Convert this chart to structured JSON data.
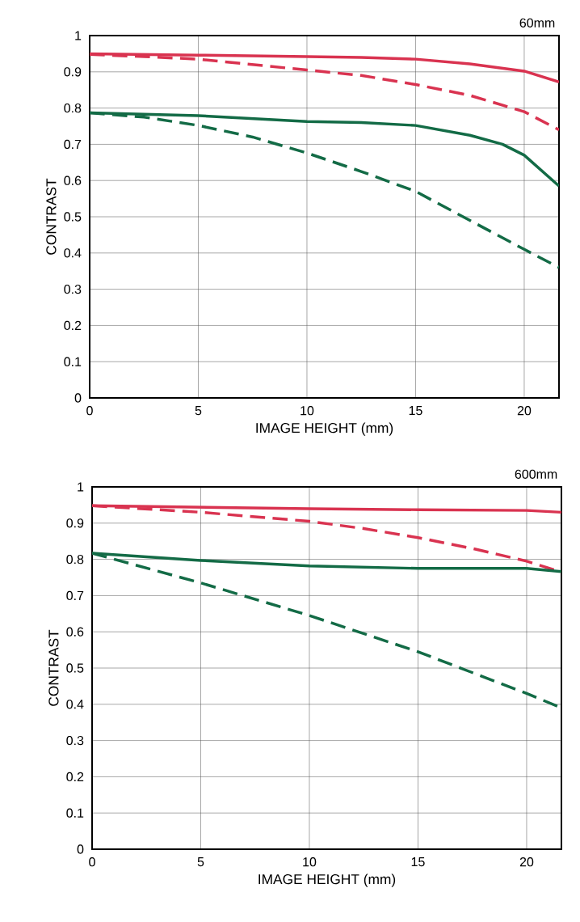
{
  "chart_data": [
    {
      "type": "line",
      "title": "60mm",
      "xlabel": "IMAGE HEIGHT (mm)",
      "ylabel": "CONTRAST",
      "xlim": [
        0,
        21.6
      ],
      "ylim": [
        0,
        1
      ],
      "xticks": [
        0,
        5,
        10,
        15,
        20
      ],
      "yticks": [
        0,
        0.1,
        0.2,
        0.3,
        0.4,
        0.5,
        0.6,
        0.7,
        0.8,
        0.9,
        1
      ],
      "grid": true,
      "marker": "none",
      "series": [
        {
          "color": "#d93350",
          "line_style": "solid",
          "x": [
            0,
            5,
            10,
            12.5,
            15,
            17.5,
            20,
            21.6
          ],
          "values": [
            0.95,
            0.946,
            0.942,
            0.94,
            0.935,
            0.922,
            0.902,
            0.872
          ]
        },
        {
          "color": "#d93350",
          "line_style": "dashed",
          "x": [
            0,
            2.5,
            5,
            10,
            12.5,
            15,
            17.5,
            20,
            21.6
          ],
          "values": [
            0.948,
            0.942,
            0.935,
            0.905,
            0.89,
            0.865,
            0.835,
            0.79,
            0.74
          ]
        },
        {
          "color": "#136b46",
          "line_style": "solid",
          "x": [
            0,
            5,
            10,
            12.5,
            15,
            17.5,
            19,
            20,
            21.6
          ],
          "values": [
            0.787,
            0.779,
            0.763,
            0.76,
            0.752,
            0.725,
            0.7,
            0.67,
            0.585
          ]
        },
        {
          "color": "#136b46",
          "line_style": "dashed",
          "x": [
            0,
            2.5,
            5,
            7.5,
            10,
            12.5,
            15,
            17.5,
            20,
            21.6
          ],
          "values": [
            0.787,
            0.775,
            0.752,
            0.72,
            0.676,
            0.625,
            0.57,
            0.49,
            0.41,
            0.36
          ]
        }
      ]
    },
    {
      "type": "line",
      "title": "600mm",
      "xlabel": "IMAGE HEIGHT (mm)",
      "ylabel": "CONTRAST",
      "xlim": [
        0,
        21.6
      ],
      "ylim": [
        0,
        1
      ],
      "xticks": [
        0,
        5,
        10,
        15,
        20
      ],
      "yticks": [
        0,
        0.1,
        0.2,
        0.3,
        0.4,
        0.5,
        0.6,
        0.7,
        0.8,
        0.9,
        1
      ],
      "grid": true,
      "marker": "none",
      "series": [
        {
          "color": "#d93350",
          "line_style": "solid",
          "x": [
            0,
            10,
            15,
            20,
            21.6
          ],
          "values": [
            0.948,
            0.94,
            0.937,
            0.935,
            0.93
          ]
        },
        {
          "color": "#d93350",
          "line_style": "dashed",
          "x": [
            0,
            5,
            10,
            12.5,
            15,
            17.5,
            20,
            21.6
          ],
          "values": [
            0.948,
            0.93,
            0.905,
            0.885,
            0.86,
            0.83,
            0.795,
            0.765
          ]
        },
        {
          "color": "#136b46",
          "line_style": "solid",
          "x": [
            0,
            5,
            10,
            15,
            20,
            21.6
          ],
          "values": [
            0.817,
            0.797,
            0.782,
            0.775,
            0.775,
            0.766
          ]
        },
        {
          "color": "#136b46",
          "line_style": "dashed",
          "x": [
            0,
            5,
            10,
            15,
            20,
            21.6
          ],
          "values": [
            0.817,
            0.735,
            0.645,
            0.545,
            0.43,
            0.39
          ]
        }
      ]
    }
  ]
}
